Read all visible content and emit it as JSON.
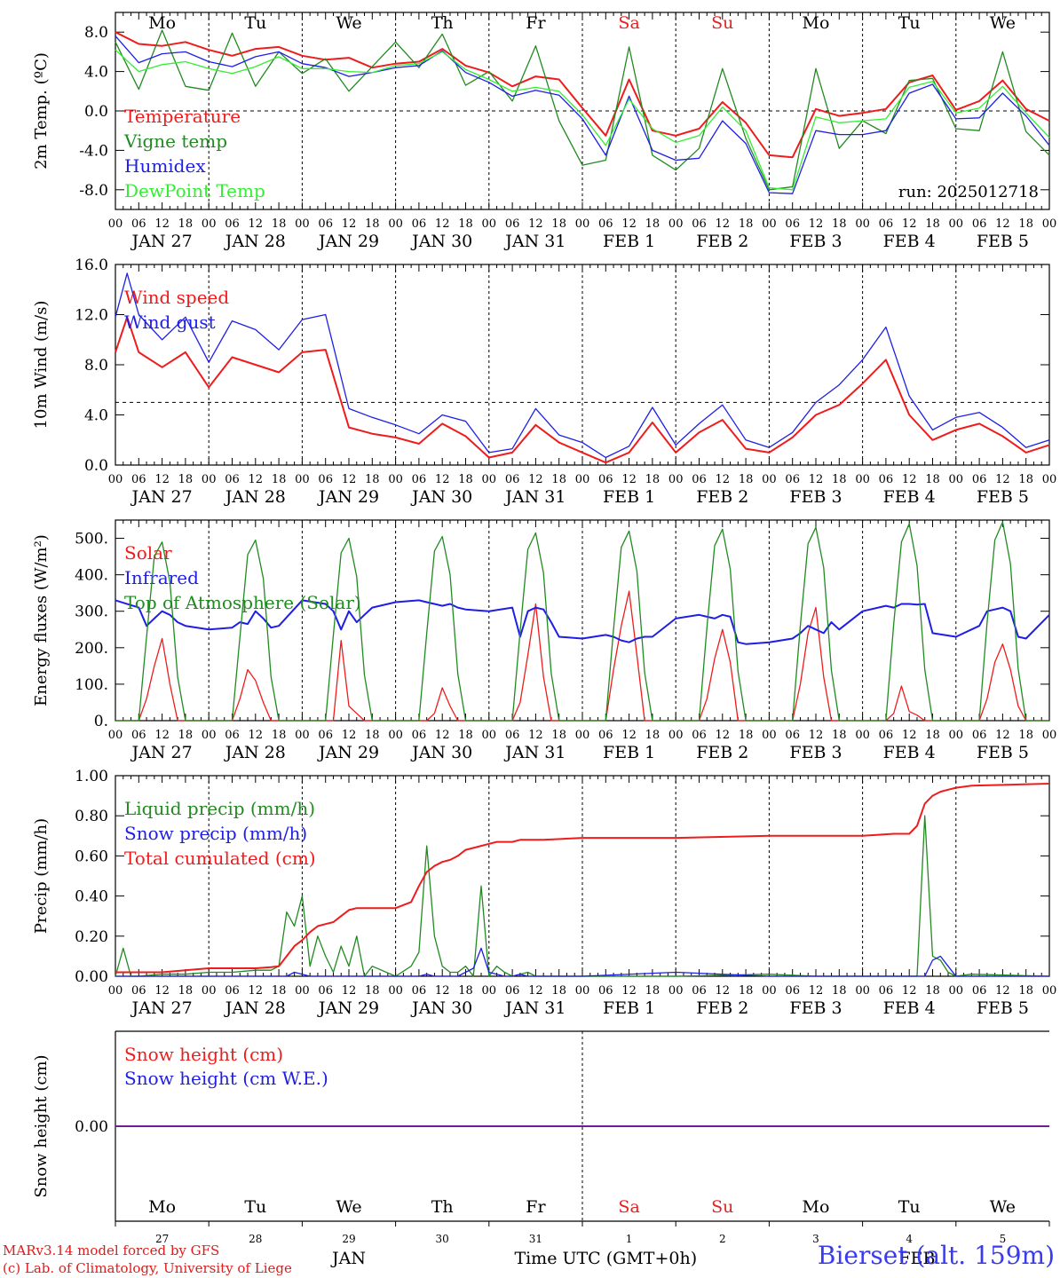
{
  "meta": {
    "run_label": "run: 2025012718",
    "model_line": "MARv3.14 model forced by GFS",
    "copyright_line": "(c) Lab. of Climatology, University of Liege",
    "station": "Bierset (alt. 159m)",
    "x_title": "Time UTC (GMT+0h)",
    "month_label": "JAN",
    "month_label_2": "FEB"
  },
  "colors": {
    "red": "#ee1c1c",
    "darkgreen": "#218a21",
    "blue": "#1e1ee6",
    "lightgreen": "#33ee33",
    "weekend": "#ee1c1c",
    "axis": "#000000"
  },
  "days": [
    {
      "weekday": "Mo",
      "date": "JAN 27",
      "num": "27",
      "weekend": false
    },
    {
      "weekday": "Tu",
      "date": "JAN 28",
      "num": "28",
      "weekend": false
    },
    {
      "weekday": "We",
      "date": "JAN 29",
      "num": "29",
      "weekend": false
    },
    {
      "weekday": "Th",
      "date": "JAN 30",
      "num": "30",
      "weekend": false
    },
    {
      "weekday": "Fr",
      "date": "JAN 31",
      "num": "31",
      "weekend": false
    },
    {
      "weekday": "Sa",
      "date": "FEB  1",
      "num": "1",
      "weekend": true
    },
    {
      "weekday": "Su",
      "date": "FEB  2",
      "num": "2",
      "weekend": true
    },
    {
      "weekday": "Mo",
      "date": "FEB  3",
      "num": "3",
      "weekend": false
    },
    {
      "weekday": "Tu",
      "date": "FEB  4",
      "num": "4",
      "weekend": false
    },
    {
      "weekday": "We",
      "date": "FEB  5",
      "num": "5",
      "weekend": false
    }
  ],
  "hour_ticks": [
    "00",
    "06",
    "12",
    "18"
  ],
  "chart_data": [
    {
      "id": "temp",
      "type": "line",
      "ylabel": "2m Temp. (ºC)",
      "ylim": [
        -10,
        10
      ],
      "yticks": [
        "8.0",
        "4.0",
        "0.0",
        "-4.0",
        "-8.0"
      ],
      "ytick_values": [
        8,
        4,
        0,
        -4,
        -8
      ],
      "reference_line": 0,
      "x": [
        0,
        6,
        12,
        18,
        24,
        30,
        36,
        42,
        48,
        54,
        60,
        66,
        72,
        78,
        84,
        90,
        96,
        102,
        108,
        114,
        120,
        126,
        132,
        138,
        144,
        150,
        156,
        162,
        168,
        174,
        180,
        186,
        192,
        198,
        204,
        210,
        216,
        222,
        228,
        234,
        240
      ],
      "series": [
        {
          "name": "Temperature",
          "color": "red",
          "values": [
            8.0,
            6.8,
            6.6,
            7.0,
            6.2,
            5.6,
            6.3,
            6.5,
            5.6,
            5.2,
            5.4,
            4.4,
            4.8,
            5.0,
            6.3,
            4.6,
            3.9,
            2.5,
            3.5,
            3.2,
            0.3,
            -2.5,
            3.2,
            -2.0,
            -2.5,
            -1.8,
            0.9,
            -1.2,
            -4.5,
            -4.7,
            0.2,
            -0.5,
            -0.2,
            0.2,
            2.9,
            3.6,
            0.1,
            1.0,
            3.1,
            0.2,
            -1.0
          ]
        },
        {
          "name": "Vigne temp",
          "color": "darkgreen",
          "values": [
            7.0,
            2.2,
            8.2,
            2.5,
            2.1,
            7.9,
            2.5,
            6.0,
            3.8,
            5.3,
            2.0,
            4.5,
            7.0,
            4.4,
            7.8,
            2.6,
            4.0,
            1.0,
            6.6,
            -1.0,
            -5.5,
            -5.0,
            6.5,
            -4.5,
            -6.0,
            -3.8,
            4.3,
            -2.8,
            -8.0,
            -7.7,
            4.3,
            -3.8,
            -1.0,
            -2.3,
            3.1,
            3.3,
            -1.8,
            -2.0,
            6.0,
            -2.1,
            -4.5
          ]
        },
        {
          "name": "Humidex",
          "color": "blue",
          "values": [
            7.6,
            4.9,
            5.8,
            6.0,
            5.0,
            4.5,
            5.5,
            6.0,
            4.8,
            4.4,
            3.5,
            3.9,
            4.4,
            4.6,
            6.1,
            3.9,
            2.9,
            1.5,
            2.1,
            1.6,
            -0.8,
            -4.5,
            1.5,
            -4.0,
            -5.0,
            -4.8,
            -1.0,
            -3.3,
            -8.3,
            -8.4,
            -2.0,
            -2.4,
            -2.4,
            -2.0,
            1.8,
            2.7,
            -0.8,
            -0.7,
            1.8,
            -0.5,
            -3.5
          ]
        },
        {
          "name": "DewPoint Temp",
          "color": "lightgreen",
          "values": [
            6.2,
            4.0,
            4.7,
            5.0,
            4.3,
            3.8,
            4.5,
            5.5,
            4.3,
            4.3,
            4.0,
            3.9,
            4.6,
            4.8,
            6.0,
            4.2,
            3.2,
            2.0,
            2.4,
            2.0,
            -0.4,
            -3.5,
            1.2,
            -1.8,
            -3.2,
            -2.5,
            0.4,
            -2.0,
            -7.8,
            -8.0,
            -0.6,
            -1.2,
            -1.0,
            -0.8,
            2.4,
            3.0,
            -0.2,
            0.3,
            2.5,
            -0.2,
            -2.7
          ]
        }
      ]
    },
    {
      "id": "wind",
      "type": "line",
      "ylabel": "10m Wind (m/s)",
      "ylim": [
        0,
        16
      ],
      "yticks": [
        "16.0",
        "12.0",
        "8.0",
        "4.0",
        "0.0"
      ],
      "ytick_values": [
        16,
        12,
        8,
        4,
        0
      ],
      "reference_line": 5,
      "x": [
        0,
        3,
        6,
        12,
        18,
        24,
        30,
        36,
        42,
        48,
        54,
        60,
        66,
        72,
        78,
        84,
        90,
        96,
        102,
        108,
        114,
        120,
        126,
        132,
        138,
        144,
        150,
        156,
        162,
        168,
        174,
        180,
        186,
        192,
        198,
        204,
        210,
        216,
        222,
        228,
        234,
        240
      ],
      "series": [
        {
          "name": "Wind speed",
          "color": "red",
          "values": [
            9.0,
            11.8,
            9.0,
            7.8,
            9.0,
            6.2,
            8.6,
            8.0,
            7.4,
            9.0,
            9.2,
            3.0,
            2.5,
            2.2,
            1.7,
            3.3,
            2.3,
            0.6,
            1.0,
            3.2,
            1.8,
            1.0,
            0.2,
            1.0,
            3.4,
            1.0,
            2.6,
            3.6,
            1.3,
            1.0,
            2.2,
            4.0,
            4.8,
            6.5,
            8.4,
            4.0,
            2.0,
            2.8,
            3.3,
            2.3,
            1.0,
            1.6
          ]
        },
        {
          "name": "Wind gust",
          "color": "blue",
          "values": [
            11.8,
            15.3,
            12.0,
            10.0,
            11.8,
            8.2,
            11.5,
            10.8,
            9.2,
            11.6,
            12.0,
            4.5,
            3.8,
            3.2,
            2.5,
            4.0,
            3.5,
            1.0,
            1.3,
            4.5,
            2.4,
            1.8,
            0.6,
            1.5,
            4.6,
            1.6,
            3.3,
            4.8,
            2.0,
            1.4,
            2.6,
            5.0,
            6.4,
            8.4,
            11.0,
            5.5,
            2.8,
            3.8,
            4.2,
            3.0,
            1.4,
            2.0
          ]
        }
      ]
    },
    {
      "id": "energy",
      "type": "line",
      "ylabel": "Energy fluxes (W/m²)",
      "ylim": [
        0,
        550
      ],
      "yticks": [
        "500.",
        "400.",
        "300.",
        "200.",
        "100.",
        "0."
      ],
      "ytick_values": [
        500,
        400,
        300,
        200,
        100,
        0
      ],
      "x": [
        0,
        6,
        8,
        10,
        12,
        14,
        16,
        18,
        24,
        30,
        32,
        34,
        36,
        38,
        40,
        42,
        48,
        54,
        56,
        58,
        60,
        62,
        64,
        66,
        72,
        78,
        80,
        82,
        84,
        86,
        88,
        90,
        96,
        102,
        104,
        106,
        108,
        110,
        112,
        114,
        120,
        126,
        128,
        130,
        132,
        134,
        136,
        138,
        144,
        150,
        152,
        154,
        156,
        158,
        160,
        162,
        168,
        174,
        176,
        178,
        180,
        182,
        184,
        186,
        192,
        198,
        200,
        202,
        204,
        206,
        208,
        210,
        216,
        222,
        224,
        226,
        228,
        230,
        232,
        234,
        240
      ],
      "series": [
        {
          "name": "Solar",
          "color": "red",
          "values": [
            0,
            0,
            60,
            150,
            225,
            100,
            0,
            0,
            0,
            0,
            60,
            140,
            110,
            50,
            0,
            0,
            0,
            0,
            0,
            220,
            40,
            20,
            0,
            0,
            0,
            0,
            0,
            20,
            90,
            40,
            0,
            0,
            0,
            0,
            50,
            180,
            320,
            120,
            0,
            0,
            0,
            0,
            140,
            260,
            355,
            180,
            0,
            0,
            0,
            0,
            60,
            170,
            250,
            160,
            0,
            0,
            0,
            0,
            100,
            240,
            310,
            120,
            0,
            0,
            0,
            0,
            20,
            95,
            25,
            15,
            0,
            0,
            0,
            0,
            60,
            160,
            210,
            140,
            40,
            0,
            0
          ]
        },
        {
          "name": "Infrared",
          "color": "blue",
          "values": [
            330,
            310,
            260,
            280,
            300,
            290,
            270,
            260,
            250,
            255,
            270,
            265,
            300,
            280,
            255,
            260,
            330,
            320,
            300,
            250,
            300,
            270,
            290,
            310,
            325,
            330,
            325,
            320,
            315,
            320,
            310,
            305,
            300,
            310,
            230,
            300,
            310,
            305,
            270,
            230,
            225,
            235,
            230,
            220,
            215,
            225,
            230,
            230,
            280,
            290,
            285,
            280,
            290,
            285,
            215,
            210,
            215,
            225,
            240,
            260,
            250,
            240,
            270,
            250,
            300,
            315,
            310,
            320,
            320,
            318,
            320,
            240,
            230,
            260,
            300,
            305,
            310,
            300,
            230,
            225,
            290
          ]
        },
        {
          "name": "Top of Atmosphere (Solar)",
          "color": "darkgreen",
          "values": [
            0,
            0,
            230,
            450,
            490,
            380,
            120,
            0,
            0,
            0,
            230,
            455,
            495,
            390,
            120,
            0,
            0,
            0,
            235,
            460,
            500,
            395,
            125,
            0,
            0,
            0,
            240,
            465,
            505,
            400,
            128,
            0,
            0,
            0,
            245,
            470,
            515,
            405,
            130,
            0,
            0,
            0,
            250,
            475,
            520,
            410,
            132,
            0,
            0,
            0,
            255,
            480,
            525,
            415,
            135,
            0,
            0,
            0,
            260,
            485,
            530,
            420,
            138,
            0,
            0,
            0,
            265,
            490,
            540,
            425,
            140,
            0,
            0,
            0,
            270,
            495,
            545,
            430,
            142,
            0,
            0
          ]
        }
      ]
    },
    {
      "id": "precip",
      "type": "line",
      "ylabel": "Precip (mm/h)",
      "ylim": [
        0,
        1.0
      ],
      "yticks": [
        "1.00",
        "0.80",
        "0.60",
        "0.40",
        "0.20",
        "0.00"
      ],
      "ytick_values": [
        1.0,
        0.8,
        0.6,
        0.4,
        0.2,
        0.0
      ],
      "x": [
        0,
        2,
        4,
        6,
        12,
        18,
        24,
        30,
        36,
        40,
        42,
        44,
        46,
        48,
        50,
        52,
        54,
        56,
        58,
        60,
        62,
        64,
        66,
        72,
        76,
        78,
        80,
        82,
        84,
        86,
        88,
        90,
        92,
        94,
        96,
        98,
        100,
        102,
        104,
        106,
        108,
        110,
        120,
        144,
        168,
        180,
        192,
        200,
        204,
        206,
        208,
        210,
        212,
        214,
        216,
        220,
        240
      ],
      "series": [
        {
          "name": "Liquid precip (mm/h)",
          "color": "darkgreen",
          "values": [
            0,
            0.14,
            0,
            0,
            0.01,
            0.01,
            0.02,
            0.02,
            0.03,
            0.03,
            0.05,
            0.32,
            0.25,
            0.4,
            0.05,
            0.2,
            0.1,
            0.02,
            0.15,
            0.05,
            0.2,
            0.0,
            0.05,
            0.0,
            0.05,
            0.12,
            0.65,
            0.2,
            0.05,
            0.02,
            0.02,
            0.05,
            0.0,
            0.45,
            0.0,
            0.05,
            0.02,
            0.0,
            0.01,
            0.02,
            0.0,
            0.0,
            0.0,
            0.0,
            0.01,
            0.0,
            0.0,
            0.0,
            0.0,
            0.0,
            0.8,
            0.1,
            0.08,
            0.02,
            0.0,
            0.01,
            0.0
          ]
        },
        {
          "name": "Snow precip (mm/h)",
          "color": "blue",
          "values": [
            0,
            0,
            0,
            0,
            0,
            0,
            0,
            0,
            0,
            0,
            0,
            0,
            0.02,
            0.01,
            0,
            0,
            0,
            0,
            0,
            0,
            0,
            0,
            0,
            0,
            0,
            0,
            0.01,
            0,
            0,
            0,
            0,
            0.02,
            0.04,
            0.14,
            0.02,
            0.01,
            0,
            0,
            0.01,
            0,
            0,
            0,
            0,
            0.02,
            0,
            0,
            0,
            0,
            0,
            0,
            0,
            0.08,
            0.1,
            0.05,
            0,
            0,
            0
          ]
        },
        {
          "name": "Total cumulated (cm)",
          "color": "red",
          "values": [
            0.02,
            0.02,
            0.02,
            0.02,
            0.02,
            0.03,
            0.04,
            0.04,
            0.04,
            0.045,
            0.05,
            0.1,
            0.15,
            0.18,
            0.22,
            0.25,
            0.26,
            0.27,
            0.3,
            0.33,
            0.34,
            0.34,
            0.34,
            0.34,
            0.37,
            0.45,
            0.52,
            0.55,
            0.57,
            0.58,
            0.6,
            0.63,
            0.64,
            0.65,
            0.66,
            0.67,
            0.67,
            0.67,
            0.68,
            0.68,
            0.68,
            0.68,
            0.69,
            0.69,
            0.7,
            0.7,
            0.7,
            0.71,
            0.71,
            0.75,
            0.86,
            0.9,
            0.92,
            0.93,
            0.94,
            0.95,
            0.96
          ]
        }
      ]
    },
    {
      "id": "snow",
      "type": "line",
      "ylabel": "Snow height (cm)",
      "yticks": [
        "0.00"
      ],
      "ytick_values": [
        0
      ],
      "ylim": [
        -1,
        1
      ],
      "x": [
        0,
        240
      ],
      "series": [
        {
          "name": "Snow height (cm)",
          "color": "red",
          "values": [
            0,
            0
          ]
        },
        {
          "name": "Snow height (cm W.E.)",
          "color": "blue",
          "values": [
            0,
            0
          ]
        }
      ]
    }
  ]
}
